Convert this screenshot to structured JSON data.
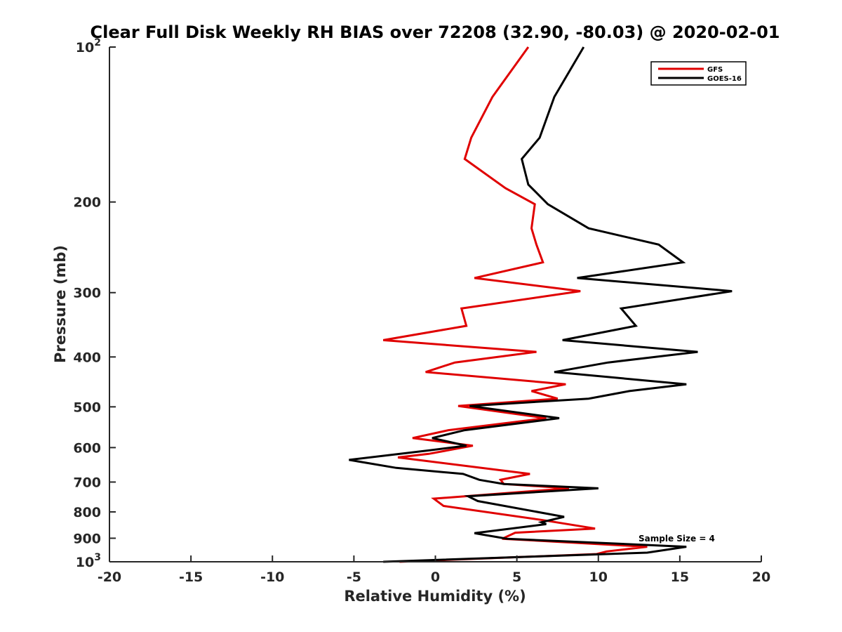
{
  "chart_data": {
    "type": "line",
    "title": "Clear Full Disk Weekly RH BIAS over 72208 (32.90, -80.03) @ 2020-02-01",
    "xlabel": "Relative Humidity (%)",
    "ylabel": "Pressure (mb)",
    "xlim": [
      -20,
      20
    ],
    "ylim": [
      1000,
      100
    ],
    "y_scale": "log",
    "y_reversed": true,
    "x_ticks": [
      "-20",
      "-15",
      "-10",
      "-5",
      "0",
      "5",
      "10",
      "15",
      "20"
    ],
    "y_ticks": [
      {
        "value": 100,
        "base": "10",
        "exp": "2"
      },
      {
        "value": 200,
        "label": "200"
      },
      {
        "value": 300,
        "label": "300"
      },
      {
        "value": 400,
        "label": "400"
      },
      {
        "value": 500,
        "label": "500"
      },
      {
        "value": 600,
        "label": "600"
      },
      {
        "value": 700,
        "label": "700"
      },
      {
        "value": 800,
        "label": "800"
      },
      {
        "value": 900,
        "label": "900"
      },
      {
        "value": 1000,
        "base": "10",
        "exp": "3"
      }
    ],
    "grid": false,
    "legend_position": "top-right",
    "annotation": "Sample Size = 4",
    "series": [
      {
        "name": "GFS",
        "color": "#e00000",
        "points": [
          {
            "rh": 5.7,
            "p": 100
          },
          {
            "rh": 3.5,
            "p": 125
          },
          {
            "rh": 2.2,
            "p": 150
          },
          {
            "rh": 1.8,
            "p": 165
          },
          {
            "rh": 4.3,
            "p": 188
          },
          {
            "rh": 6.1,
            "p": 202
          },
          {
            "rh": 5.9,
            "p": 225
          },
          {
            "rh": 6.2,
            "p": 242
          },
          {
            "rh": 6.6,
            "p": 262
          },
          {
            "rh": 2.4,
            "p": 281
          },
          {
            "rh": 8.9,
            "p": 298
          },
          {
            "rh": 1.6,
            "p": 322
          },
          {
            "rh": 1.9,
            "p": 348
          },
          {
            "rh": -3.2,
            "p": 371
          },
          {
            "rh": 6.2,
            "p": 391
          },
          {
            "rh": 1.2,
            "p": 410
          },
          {
            "rh": -0.6,
            "p": 428
          },
          {
            "rh": 8.0,
            "p": 452
          },
          {
            "rh": 5.9,
            "p": 466
          },
          {
            "rh": 7.5,
            "p": 482
          },
          {
            "rh": 1.4,
            "p": 498
          },
          {
            "rh": 6.8,
            "p": 526
          },
          {
            "rh": 0.8,
            "p": 555
          },
          {
            "rh": -1.4,
            "p": 575
          },
          {
            "rh": 2.3,
            "p": 595
          },
          {
            "rh": -0.4,
            "p": 617
          },
          {
            "rh": -2.3,
            "p": 627
          },
          {
            "rh": 5.8,
            "p": 675
          },
          {
            "rh": 4.0,
            "p": 693
          },
          {
            "rh": 4.2,
            "p": 706
          },
          {
            "rh": 8.2,
            "p": 720
          },
          {
            "rh": -0.1,
            "p": 754
          },
          {
            "rh": 0.5,
            "p": 779
          },
          {
            "rh": 6.6,
            "p": 830
          },
          {
            "rh": 9.8,
            "p": 862
          },
          {
            "rh": 4.9,
            "p": 878
          },
          {
            "rh": 4.1,
            "p": 902
          },
          {
            "rh": 13.0,
            "p": 935
          },
          {
            "rh": 10.5,
            "p": 955
          },
          {
            "rh": 9.9,
            "p": 966
          },
          {
            "rh": -2.2,
            "p": 1000
          }
        ]
      },
      {
        "name": "GOES-16",
        "color": "#000000",
        "points": [
          {
            "rh": 9.1,
            "p": 100
          },
          {
            "rh": 7.3,
            "p": 125
          },
          {
            "rh": 6.4,
            "p": 150
          },
          {
            "rh": 5.3,
            "p": 165
          },
          {
            "rh": 5.7,
            "p": 185
          },
          {
            "rh": 6.9,
            "p": 202
          },
          {
            "rh": 9.4,
            "p": 225
          },
          {
            "rh": 13.7,
            "p": 242
          },
          {
            "rh": 15.2,
            "p": 262
          },
          {
            "rh": 8.7,
            "p": 281
          },
          {
            "rh": 18.2,
            "p": 298
          },
          {
            "rh": 11.4,
            "p": 322
          },
          {
            "rh": 12.3,
            "p": 348
          },
          {
            "rh": 7.8,
            "p": 371
          },
          {
            "rh": 16.1,
            "p": 391
          },
          {
            "rh": 10.6,
            "p": 410
          },
          {
            "rh": 7.3,
            "p": 428
          },
          {
            "rh": 15.4,
            "p": 452
          },
          {
            "rh": 11.9,
            "p": 466
          },
          {
            "rh": 9.4,
            "p": 482
          },
          {
            "rh": 2.1,
            "p": 498
          },
          {
            "rh": 7.6,
            "p": 526
          },
          {
            "rh": 1.8,
            "p": 555
          },
          {
            "rh": -0.2,
            "p": 575
          },
          {
            "rh": 1.9,
            "p": 595
          },
          {
            "rh": -0.3,
            "p": 607
          },
          {
            "rh": -5.3,
            "p": 634
          },
          {
            "rh": -2.4,
            "p": 657
          },
          {
            "rh": 1.7,
            "p": 675
          },
          {
            "rh": 2.7,
            "p": 693
          },
          {
            "rh": 4.2,
            "p": 706
          },
          {
            "rh": 10.0,
            "p": 720
          },
          {
            "rh": 2.0,
            "p": 746
          },
          {
            "rh": 2.6,
            "p": 762
          },
          {
            "rh": 7.9,
            "p": 818
          },
          {
            "rh": 6.5,
            "p": 838
          },
          {
            "rh": 6.8,
            "p": 845
          },
          {
            "rh": 2.4,
            "p": 880
          },
          {
            "rh": 4.4,
            "p": 902
          },
          {
            "rh": 15.4,
            "p": 935
          },
          {
            "rh": 13.0,
            "p": 960
          },
          {
            "rh": -3.2,
            "p": 1000
          }
        ]
      }
    ]
  }
}
